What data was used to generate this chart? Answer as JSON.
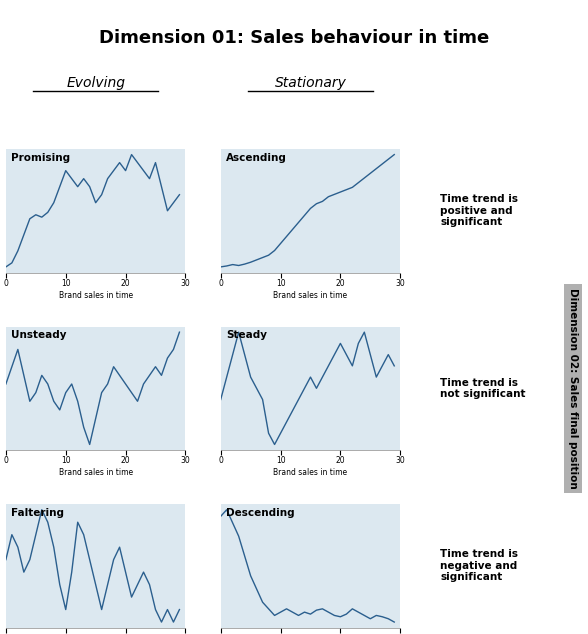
{
  "title": "Dimension 01: Sales behaviour in time",
  "col_labels": [
    "Evolving",
    "Stationary"
  ],
  "row_labels": [
    "Time trend is\npositive and\nsignificant",
    "Time trend is\nnot significant",
    "Time trend is\nnegative and\nsignificant"
  ],
  "right_label": "Dimension 02: Sales final position",
  "subplot_titles": [
    [
      "Promising",
      "Ascending"
    ],
    [
      "Unsteady",
      "Steady"
    ],
    [
      "Faltering",
      "Descending"
    ]
  ],
  "xlabel": "Brand sales in time",
  "line_color": "#2b5f8e",
  "bg_color": "#dce8f0",
  "title_bg": "#b0b0b0",
  "promising_y": [
    1,
    1.5,
    3,
    5,
    7,
    7.5,
    7.2,
    7.8,
    9,
    11,
    13,
    12,
    11,
    12,
    11,
    9,
    10,
    12,
    13,
    14,
    13,
    15,
    14,
    13,
    12,
    14,
    11,
    8,
    9,
    10
  ],
  "ascending_y": [
    2,
    2.2,
    2.5,
    2.3,
    2.6,
    3,
    3.5,
    4,
    4.5,
    5.5,
    7,
    8.5,
    10,
    11.5,
    13,
    14.5,
    15.5,
    16,
    17,
    17.5,
    18,
    18.5,
    19,
    20,
    21,
    22,
    23,
    24,
    25,
    26
  ],
  "unsteady_y": [
    10,
    12,
    14,
    11,
    8,
    9,
    11,
    10,
    8,
    7,
    9,
    10,
    8,
    5,
    3,
    6,
    9,
    10,
    12,
    11,
    10,
    9,
    8,
    10,
    11,
    12,
    11,
    13,
    14,
    16
  ],
  "steady_y": [
    8,
    10,
    12,
    14,
    12,
    10,
    9,
    8,
    5,
    4,
    5,
    6,
    7,
    8,
    9,
    10,
    9,
    10,
    11,
    12,
    13,
    12,
    11,
    13,
    14,
    12,
    10,
    11,
    12,
    11
  ],
  "faltering_y": [
    10,
    12,
    11,
    9,
    10,
    12,
    14,
    13,
    11,
    8,
    6,
    9,
    13,
    12,
    10,
    8,
    6,
    8,
    10,
    11,
    9,
    7,
    8,
    9,
    8,
    6,
    5,
    6,
    5,
    6
  ],
  "descending_y": [
    18,
    19,
    17,
    15,
    12,
    9,
    7,
    5,
    4,
    3,
    3.5,
    4,
    3.5,
    3,
    3.5,
    3.2,
    3.8,
    4,
    3.5,
    3,
    2.8,
    3.2,
    4,
    3.5,
    3,
    2.5,
    3,
    2.8,
    2.5,
    2
  ]
}
